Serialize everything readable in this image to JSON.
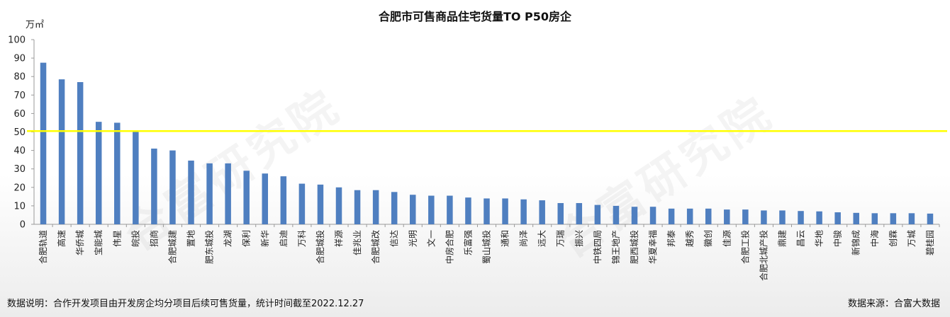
{
  "chart_data": {
    "type": "bar",
    "title": "合肥市可售商品住宅货量TO P50房企",
    "unit_label": "万㎡",
    "ylim": [
      0,
      100
    ],
    "yticks": [
      0,
      10,
      20,
      30,
      40,
      50,
      60,
      70,
      80,
      90,
      100
    ],
    "grid": false,
    "reference_line": {
      "value": 50.5,
      "color": "#ffff00"
    },
    "bar_color": "#4f7fc0",
    "categories": [
      "合肥轨道",
      "高速",
      "华侨城",
      "宝能城",
      "伟星",
      "皖投",
      "招商",
      "合肥城建",
      "置地",
      "肥东城投",
      "龙湖",
      "保利",
      "新华",
      "启迪",
      "万科",
      "合肥城投",
      "祥源",
      "佳兆业",
      "合肥城改",
      "信达",
      "光明",
      "文一",
      "中房合肥",
      "乐富强",
      "蜀山城投",
      "通和",
      "尚泽",
      "远大",
      "万瑞",
      "振兴",
      "中铁四局",
      "锦王地产",
      "肥西城投",
      "华夏幸福",
      "邦泰",
      "越秀",
      "徽创",
      "佳源",
      "合肥工投",
      "合肥北城产投",
      "鼎建",
      "昌云",
      "华地",
      "中骏",
      "新锦成",
      "中海",
      "创霖",
      "万城",
      "碧桂园"
    ],
    "values": [
      87.5,
      78.5,
      77,
      55.5,
      55,
      50.5,
      41,
      40,
      34.5,
      33,
      33,
      29,
      27.5,
      26,
      22,
      21.5,
      20,
      18.5,
      18.5,
      17.5,
      16,
      15.5,
      15.5,
      14.5,
      14,
      14,
      13.5,
      13,
      11.5,
      11.5,
      10.5,
      10,
      9.5,
      9.5,
      8.5,
      8.5,
      8.5,
      8,
      8,
      7.5,
      7.5,
      7.2,
      7,
      6.5,
      6.2,
      6,
      6,
      6,
      5.8
    ]
  },
  "watermark": "合富研究院",
  "footer": {
    "note": "数据说明：合作开发项目由开发房企均分项目后续可售货量，统计时间截至2022.12.27",
    "source": "数据来源：合富大数据"
  }
}
